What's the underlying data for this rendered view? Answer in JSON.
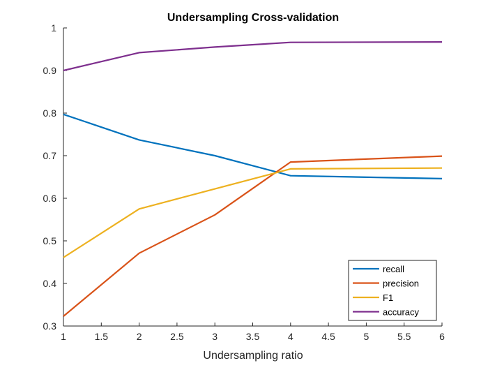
{
  "chart_data": {
    "type": "line",
    "title": "Undersampling Cross-validation",
    "xlabel": "Undersampling ratio",
    "ylabel": "",
    "xlim": [
      1,
      6
    ],
    "ylim": [
      0.3,
      1
    ],
    "xticks": [
      1,
      1.5,
      2,
      2.5,
      3,
      3.5,
      4,
      4.5,
      5,
      5.5,
      6
    ],
    "xtick_labels": [
      "1",
      "1.5",
      "2",
      "2.5",
      "3",
      "3.5",
      "4",
      "4.5",
      "5",
      "5.5",
      "6"
    ],
    "yticks": [
      0.3,
      0.4,
      0.5,
      0.6,
      0.7,
      0.8,
      0.9,
      1
    ],
    "ytick_labels": [
      "0.3",
      "0.4",
      "0.5",
      "0.6",
      "0.7",
      "0.8",
      "0.9",
      "1"
    ],
    "grid": false,
    "legend_position": "bottom-right",
    "x": [
      1,
      2,
      3,
      4,
      6
    ],
    "series": [
      {
        "name": "recall",
        "color": "#0072BD",
        "values": [
          0.797,
          0.737,
          0.7,
          0.653,
          0.646
        ]
      },
      {
        "name": "precision",
        "color": "#D95319",
        "values": [
          0.323,
          0.471,
          0.561,
          0.685,
          0.699
        ]
      },
      {
        "name": "F1",
        "color": "#EDB120",
        "values": [
          0.461,
          0.575,
          0.622,
          0.669,
          0.671
        ]
      },
      {
        "name": "accuracy",
        "color": "#7E2F8E",
        "values": [
          0.9,
          0.942,
          0.955,
          0.966,
          0.967
        ]
      }
    ]
  }
}
